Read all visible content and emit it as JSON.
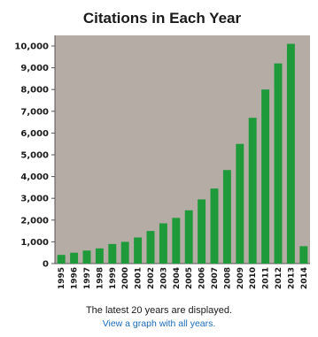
{
  "chart_data": {
    "type": "bar",
    "title": "Citations in Each Year",
    "xlabel": "",
    "ylabel": "",
    "categories": [
      "1995",
      "1996",
      "1997",
      "1998",
      "1999",
      "2000",
      "2001",
      "2002",
      "2003",
      "2004",
      "2005",
      "2006",
      "2007",
      "2008",
      "2009",
      "2010",
      "2011",
      "2012",
      "2013",
      "2014"
    ],
    "values": [
      400,
      500,
      600,
      700,
      900,
      1000,
      1200,
      1500,
      1850,
      2100,
      2450,
      2950,
      3450,
      4300,
      5500,
      6700,
      8000,
      9200,
      10100,
      800
    ],
    "ylim": [
      0,
      10000
    ],
    "yticks": [
      0,
      1000,
      2000,
      3000,
      4000,
      5000,
      6000,
      7000,
      8000,
      9000,
      10000
    ],
    "ytick_labels": [
      "0",
      "1,000",
      "2,000",
      "3,000",
      "4,000",
      "5,000",
      "6,000",
      "7,000",
      "8,000",
      "9,000",
      "10,000"
    ],
    "grid": false,
    "legend": "none",
    "bar_color": "#1f9a3a",
    "plot_background": "#b5aca6"
  },
  "footnote": "The latest 20 years are displayed.",
  "link_label": "View a graph with all years."
}
